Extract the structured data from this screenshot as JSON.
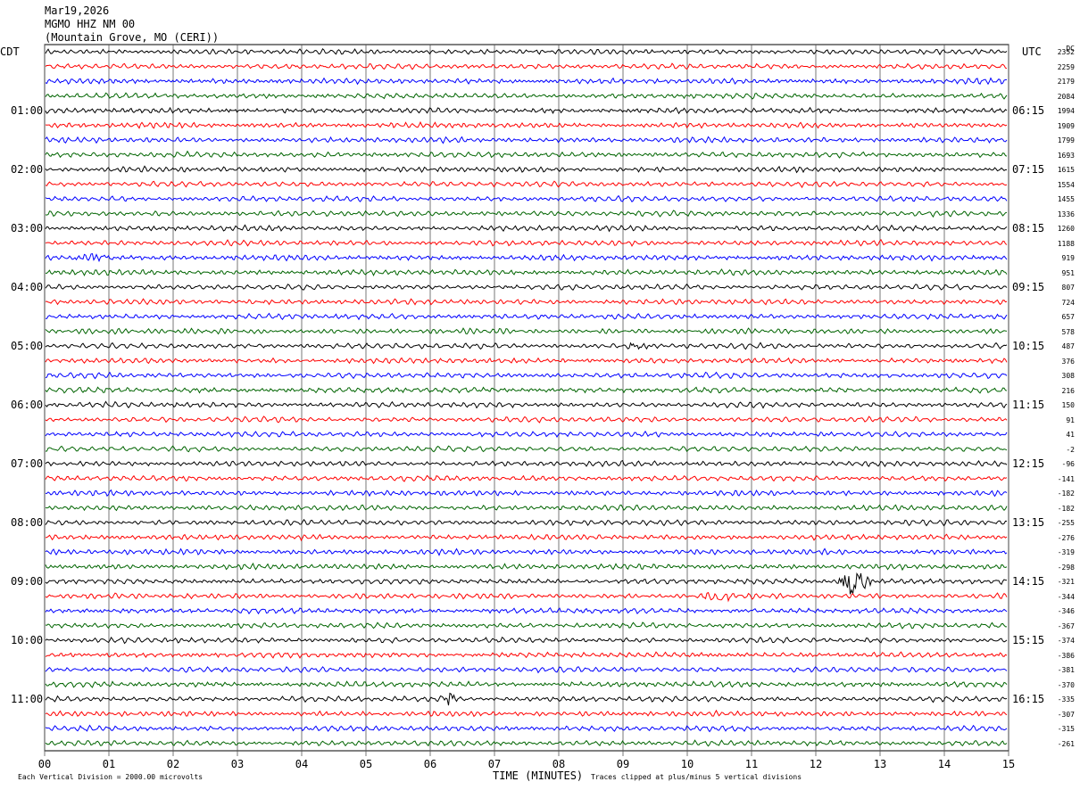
{
  "header": {
    "date": "Mar19,2026",
    "station": "MGMO HHZ NM 00",
    "location": "(Mountain Grove, MO (CERI))"
  },
  "left_axis_title": "CDT",
  "right_axis_title": "UTC",
  "dc_title": "DC",
  "footer": {
    "xlabel": "TIME (MINUTES)",
    "scale_note": "Each Vertical Division = 2000.00 microvolts",
    "clip_note": "Traces clipped at plus/minus 5 vertical divisions"
  },
  "chart_data": {
    "type": "line",
    "title": "MGMO HHZ NM 00",
    "xlabel": "TIME (MINUTES)",
    "xlim": [
      0,
      15
    ],
    "x_ticks": [
      "00",
      "01",
      "02",
      "03",
      "04",
      "05",
      "06",
      "07",
      "08",
      "09",
      "10",
      "11",
      "12",
      "13",
      "14",
      "15"
    ],
    "row_minutes": 15,
    "trace_colors": [
      "#000000",
      "#ff0000",
      "#0000ff",
      "#006400"
    ],
    "left_time_labels": [
      "01:00",
      "02:00",
      "03:00",
      "04:00",
      "05:00",
      "06:00",
      "07:00",
      "08:00",
      "09:00",
      "10:00",
      "11:00"
    ],
    "right_time_labels": [
      "06:15",
      "07:15",
      "08:15",
      "09:15",
      "10:15",
      "11:15",
      "12:15",
      "13:15",
      "14:15",
      "15:15",
      "16:15"
    ],
    "dc_offsets": [
      2352,
      2259,
      2179,
      2084,
      1994,
      1909,
      1799,
      1693,
      1615,
      1554,
      1455,
      1336,
      1260,
      1188,
      919,
      951,
      807,
      724,
      657,
      578,
      487,
      376,
      308,
      216,
      150,
      91,
      41,
      -2,
      -96,
      -141,
      -182,
      -182,
      -255,
      -276,
      -319,
      -298,
      -321,
      -344,
      -346,
      -367,
      -374,
      -386,
      -381,
      -370,
      -335,
      -307,
      -315,
      -261
    ],
    "events": [
      {
        "row": 36,
        "minute_start": 12.3,
        "minute_end": 12.9,
        "amplitude": "large"
      },
      {
        "row": 37,
        "minute_start": 10.2,
        "minute_end": 10.8,
        "amplitude": "medium"
      },
      {
        "row": 44,
        "minute_start": 6.1,
        "minute_end": 6.5,
        "amplitude": "medium"
      },
      {
        "row": 20,
        "minute_start": 9.0,
        "minute_end": 9.5,
        "amplitude": "small"
      },
      {
        "row": 14,
        "minute_start": 0.3,
        "minute_end": 1.2,
        "amplitude": "small"
      }
    ]
  }
}
